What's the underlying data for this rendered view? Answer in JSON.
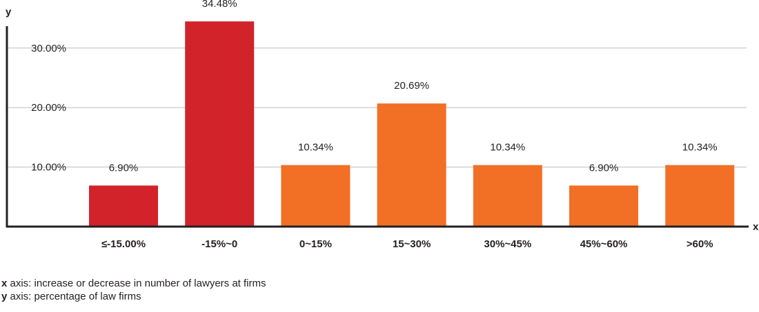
{
  "chart_data": {
    "type": "bar",
    "categories": [
      "≤-15.00%",
      "-15%~0",
      "0~15%",
      "15~30%",
      "30%~45%",
      "45%~60%",
      ">60%"
    ],
    "values": [
      6.9,
      34.48,
      10.34,
      20.69,
      10.34,
      6.9,
      10.34
    ],
    "value_labels": [
      "6.90%",
      "34.48%",
      "10.34%",
      "20.69%",
      "10.34%",
      "6.90%",
      "10.34%"
    ],
    "bar_colors": [
      "#d2232a",
      "#d2232a",
      "#f26f26",
      "#f26f26",
      "#f26f26",
      "#f26f26",
      "#f26f26"
    ],
    "yticks": [
      10,
      20,
      30
    ],
    "ytick_labels": [
      "10.00%",
      "20.00%",
      "30.00%"
    ],
    "xaxis_name": "x",
    "yaxis_name": "y",
    "grid": true,
    "title": ""
  },
  "legend": {
    "x_key": "x",
    "x_text": " axis: increase or decrease in number of lawyers at firms",
    "y_key": "y",
    "y_text": " axis: percentage of law firms"
  },
  "colors": {
    "grid": "#bcbec0",
    "axis": "#231f20"
  }
}
